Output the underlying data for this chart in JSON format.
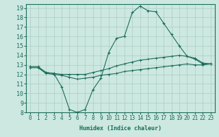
{
  "xlabel": "Humidex (Indice chaleur)",
  "ylabel": "",
  "background_color": "#cce8e0",
  "grid_color": "#aaccc4",
  "line_color": "#1a6b5a",
  "xlim": [
    -0.5,
    23.5
  ],
  "ylim": [
    8,
    19.4
  ],
  "xticks": [
    0,
    1,
    2,
    3,
    4,
    5,
    6,
    7,
    8,
    9,
    10,
    11,
    12,
    13,
    14,
    15,
    16,
    17,
    18,
    19,
    20,
    21,
    22,
    23
  ],
  "yticks": [
    8,
    9,
    10,
    11,
    12,
    13,
    14,
    15,
    16,
    17,
    18,
    19
  ],
  "line1_x": [
    0,
    1,
    2,
    3,
    4,
    5,
    6,
    7,
    8,
    9,
    10,
    11,
    12,
    13,
    14,
    15,
    16,
    17,
    18,
    19,
    20,
    21,
    22,
    23
  ],
  "line1_y": [
    12.8,
    12.8,
    12.2,
    12.1,
    10.7,
    8.3,
    8.0,
    8.3,
    10.4,
    11.6,
    14.3,
    15.8,
    16.0,
    18.5,
    19.2,
    18.7,
    18.6,
    17.4,
    16.2,
    15.0,
    13.9,
    13.6,
    13.1,
    13.1
  ],
  "line2_x": [
    0,
    1,
    2,
    3,
    4,
    5,
    6,
    7,
    8,
    9,
    10,
    11,
    12,
    13,
    14,
    15,
    16,
    17,
    18,
    19,
    20,
    21,
    22,
    23
  ],
  "line2_y": [
    12.8,
    12.8,
    12.2,
    12.1,
    12.0,
    12.0,
    12.0,
    12.0,
    12.2,
    12.4,
    12.6,
    12.9,
    13.1,
    13.3,
    13.5,
    13.6,
    13.7,
    13.8,
    13.9,
    14.0,
    13.9,
    13.7,
    13.2,
    13.1
  ],
  "line3_x": [
    0,
    1,
    2,
    3,
    4,
    5,
    6,
    7,
    8,
    9,
    10,
    11,
    12,
    13,
    14,
    15,
    16,
    17,
    18,
    19,
    20,
    21,
    22,
    23
  ],
  "line3_y": [
    12.7,
    12.7,
    12.1,
    12.0,
    11.9,
    11.7,
    11.5,
    11.6,
    11.7,
    11.9,
    12.0,
    12.1,
    12.3,
    12.4,
    12.5,
    12.6,
    12.7,
    12.8,
    12.9,
    13.0,
    13.1,
    13.0,
    13.0,
    13.1
  ]
}
